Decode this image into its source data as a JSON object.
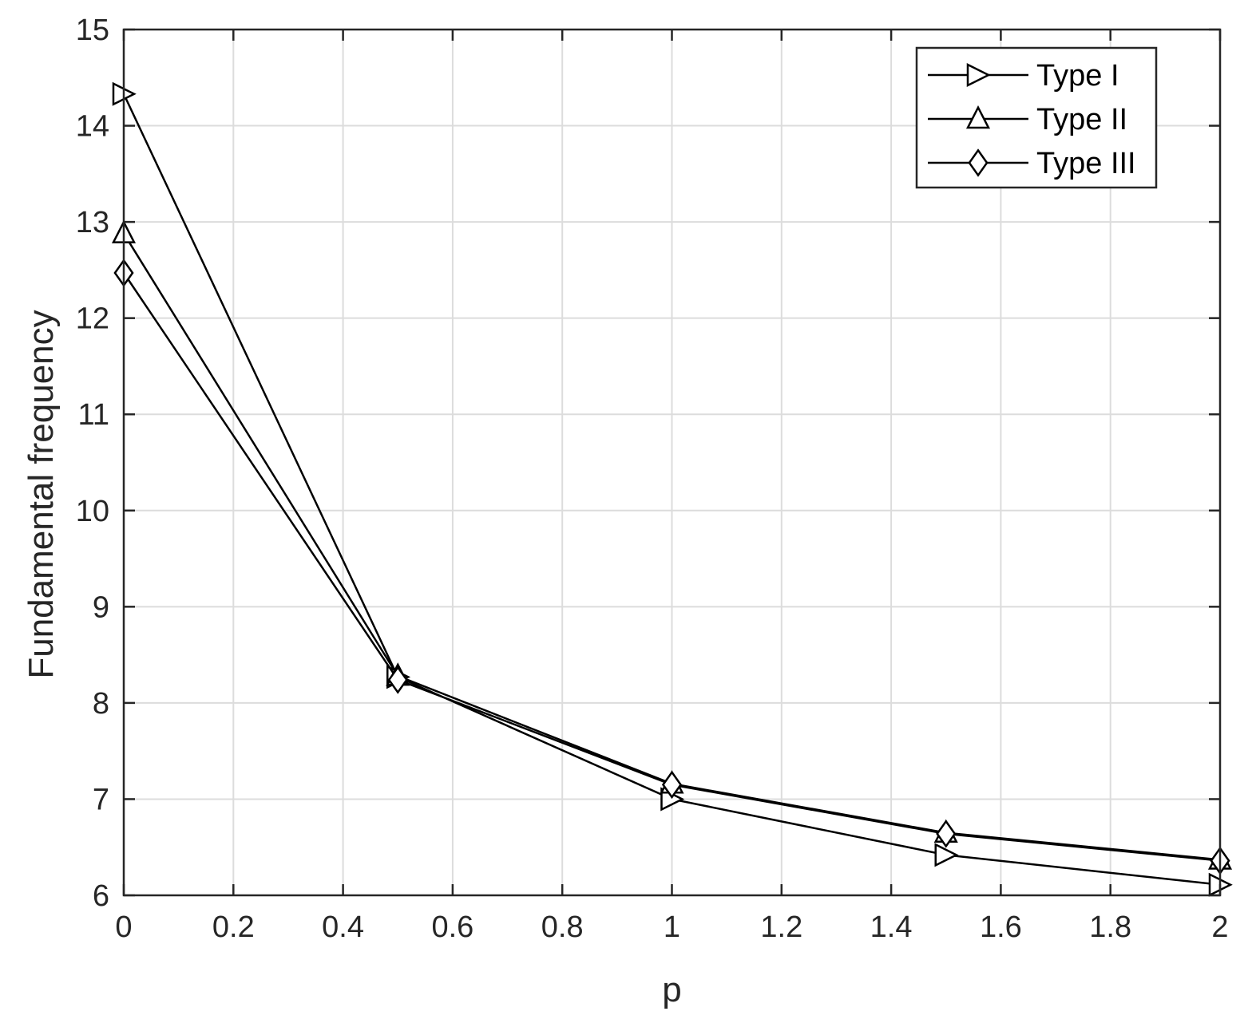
{
  "chart_data": {
    "type": "line",
    "xlabel": "p",
    "ylabel": "Fundamental frequency",
    "xlim": [
      0,
      2
    ],
    "ylim": [
      6,
      15
    ],
    "xticks": [
      0,
      0.2,
      0.4,
      0.6,
      0.8,
      1,
      1.2,
      1.4,
      1.6,
      1.8,
      2
    ],
    "xtick_labels": [
      "0",
      "0.2",
      "0.4",
      "0.6",
      "0.8",
      "1",
      "1.2",
      "1.4",
      "1.6",
      "1.8",
      "2"
    ],
    "yticks": [
      6,
      7,
      8,
      9,
      10,
      11,
      12,
      13,
      14,
      15
    ],
    "ytick_labels": [
      "6",
      "7",
      "8",
      "9",
      "10",
      "11",
      "12",
      "13",
      "14",
      "15"
    ],
    "grid": true,
    "legend_position": "top-right",
    "x": [
      0,
      0.5,
      1,
      1.5,
      2
    ],
    "series": [
      {
        "name": "Type I",
        "marker": "triangle-right",
        "values": [
          14.33,
          8.27,
          7.0,
          6.42,
          6.11
        ]
      },
      {
        "name": "Type II",
        "marker": "triangle-up",
        "values": [
          12.88,
          8.28,
          7.16,
          6.65,
          6.37
        ]
      },
      {
        "name": "Type III",
        "marker": "diamond",
        "values": [
          12.47,
          8.24,
          7.15,
          6.64,
          6.36
        ]
      }
    ],
    "colors": {
      "line": "#000000",
      "grid": "#dcdcdc",
      "axis": "#262626"
    }
  }
}
